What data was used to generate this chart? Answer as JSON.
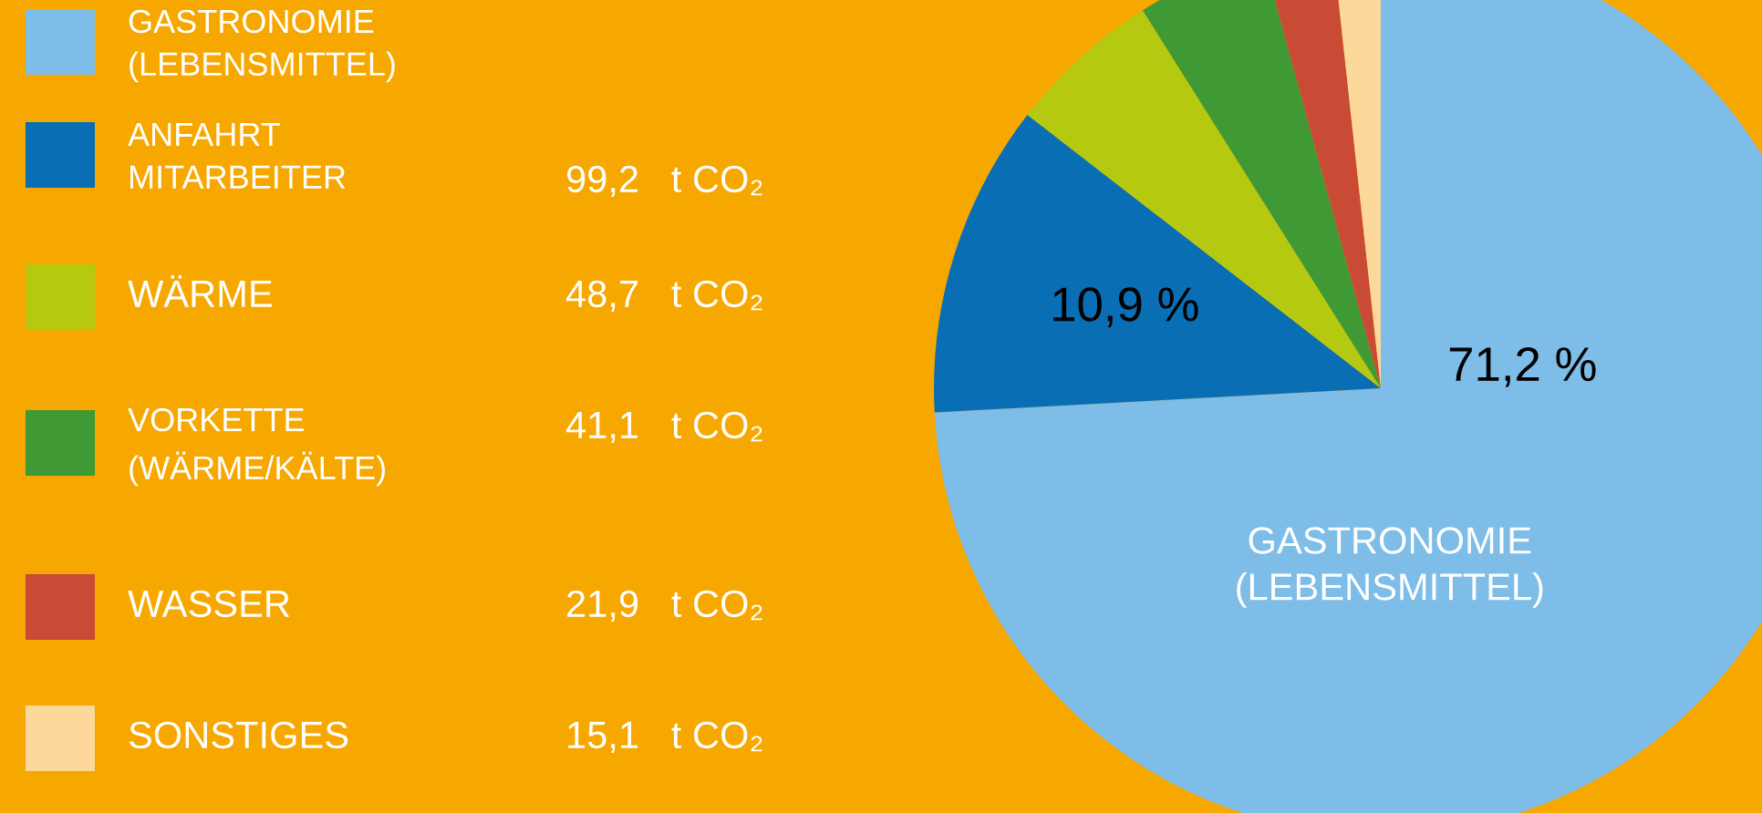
{
  "chart_data": {
    "type": "pie",
    "categories": [
      "GASTRONOMIE\n(LEBENSMITTEL)",
      "ANFAHRT\nMITARBEITER",
      "WÄRME",
      "VORKETTE\n(WÄRME/KÄLTE)",
      "WASSER",
      "SONSTIGES"
    ],
    "values": [
      71.2,
      10.9,
      5.35,
      4.52,
      2.41,
      1.66
    ],
    "colors": [
      "#7dbde8",
      "#0a6eb4",
      "#b5c910",
      "#3f9a35",
      "#c94a35",
      "#fcd89a"
    ],
    "value_labels": [
      "71,2 %",
      "10,9 %",
      null,
      null,
      null,
      null
    ],
    "legend": "left",
    "annotations": [
      "99,2   t CO₂",
      "48,7   t CO₂",
      "41,1   t CO₂",
      "21,9   t CO₂",
      "15,1   t CO₂"
    ]
  }
}
